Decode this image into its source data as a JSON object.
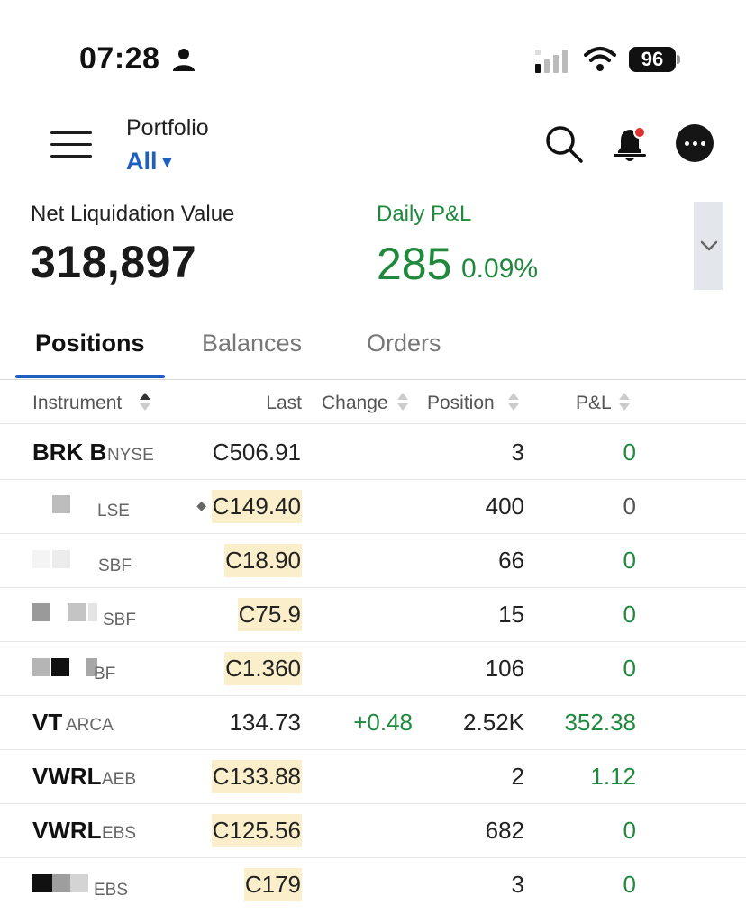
{
  "status_bar": {
    "time": "07:28",
    "battery": "96"
  },
  "header": {
    "portfolio_label": "Portfolio",
    "portfolio_value": "All"
  },
  "summary": {
    "nlv_label": "Net Liquidation Value",
    "nlv_value": "318,897",
    "pnl_label": "Daily P&L",
    "pnl_value": "285",
    "pnl_percent": "0.09%"
  },
  "tabs": [
    {
      "label": "Positions",
      "active": true
    },
    {
      "label": "Balances",
      "active": false
    },
    {
      "label": "Orders",
      "active": false
    }
  ],
  "columns": [
    "Instrument",
    "Last",
    "Change",
    "Position",
    "P&L"
  ],
  "rows": [
    {
      "symbol": "BRK B",
      "exchange": "NYSE",
      "last": "C506.91",
      "change": "",
      "position": "3",
      "pnl": "0"
    },
    {
      "symbol": "",
      "exchange": "LSE",
      "last": "C149.40",
      "change": "",
      "position": "400",
      "pnl": "0"
    },
    {
      "symbol": "",
      "exchange": "SBF",
      "last": "C18.90",
      "change": "",
      "position": "66",
      "pnl": "0"
    },
    {
      "symbol": "",
      "exchange": "SBF",
      "last": "C75.9",
      "change": "",
      "position": "15",
      "pnl": "0"
    },
    {
      "symbol": "",
      "exchange": "BF",
      "last": "C1.360",
      "change": "",
      "position": "106",
      "pnl": "0"
    },
    {
      "symbol": "VT",
      "exchange": "ARCA",
      "last": "134.73",
      "change": "+0.48",
      "position": "2.52K",
      "pnl": "352.38"
    },
    {
      "symbol": "VWRL",
      "exchange": "AEB",
      "last": "C133.88",
      "change": "",
      "position": "2",
      "pnl": "1.12"
    },
    {
      "symbol": "VWRL",
      "exchange": "EBS",
      "last": "C125.56",
      "change": "",
      "position": "682",
      "pnl": "0"
    },
    {
      "symbol": "",
      "exchange": "EBS",
      "last": "C179",
      "change": "",
      "position": "3",
      "pnl": "0"
    }
  ],
  "colors": {
    "accent": "#1f5fbf",
    "positive": "#1f8a3d",
    "highlight": "#fbefcb"
  }
}
